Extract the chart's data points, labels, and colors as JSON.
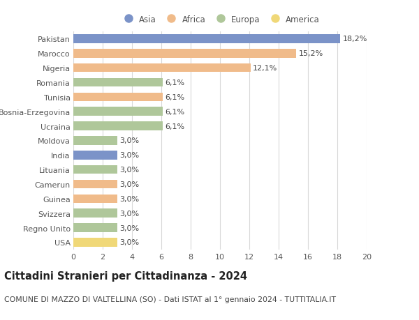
{
  "categories": [
    "Pakistan",
    "Marocco",
    "Nigeria",
    "Romania",
    "Tunisia",
    "Bosnia-Erzegovina",
    "Ucraina",
    "Moldova",
    "India",
    "Lituania",
    "Camerun",
    "Guinea",
    "Svizzera",
    "Regno Unito",
    "USA"
  ],
  "values": [
    18.2,
    15.2,
    12.1,
    6.1,
    6.1,
    6.1,
    6.1,
    3.0,
    3.0,
    3.0,
    3.0,
    3.0,
    3.0,
    3.0,
    3.0
  ],
  "labels": [
    "18,2%",
    "15,2%",
    "12,1%",
    "6,1%",
    "6,1%",
    "6,1%",
    "6,1%",
    "3,0%",
    "3,0%",
    "3,0%",
    "3,0%",
    "3,0%",
    "3,0%",
    "3,0%",
    "3,0%"
  ],
  "continents": [
    "Asia",
    "Africa",
    "Africa",
    "Europa",
    "Africa",
    "Europa",
    "Europa",
    "Europa",
    "Asia",
    "Europa",
    "Africa",
    "Africa",
    "Europa",
    "Europa",
    "America"
  ],
  "continent_colors": {
    "Asia": "#7b93c8",
    "Africa": "#f0bb8a",
    "Europa": "#afc79a",
    "America": "#f0d878"
  },
  "legend_order": [
    "Asia",
    "Africa",
    "Europa",
    "America"
  ],
  "title": "Cittadini Stranieri per Cittadinanza - 2024",
  "subtitle": "COMUNE DI MAZZO DI VALTELLINA (SO) - Dati ISTAT al 1° gennaio 2024 - TUTTITALIA.IT",
  "xlim": [
    0,
    20
  ],
  "xticks": [
    0,
    2,
    4,
    6,
    8,
    10,
    12,
    14,
    16,
    18,
    20
  ],
  "background_color": "#ffffff",
  "grid_color": "#d8d8d8",
  "bar_height": 0.6,
  "title_fontsize": 10.5,
  "subtitle_fontsize": 7.8,
  "tick_fontsize": 8,
  "label_fontsize": 8,
  "legend_fontsize": 8.5
}
